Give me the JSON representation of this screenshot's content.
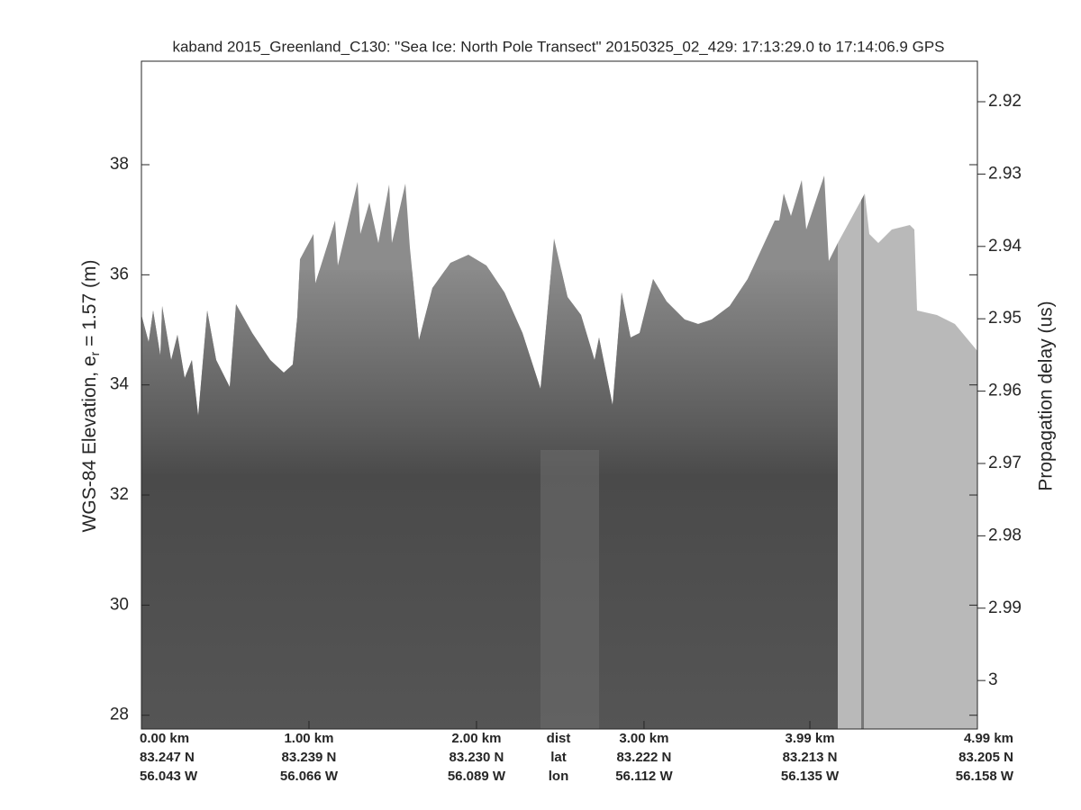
{
  "chart_data": {
    "type": "echogram",
    "title": "kaband 2015_Greenland_C130: \"Sea Ice: North Pole Transect\"  20150325_02_429: 17:13:29.0 to 17:14:06.9 GPS",
    "ylabel": [
      "WGS-84 Elevation, e",
      "r",
      " = 1.57 (m)"
    ],
    "y2label": "Propagation delay (us)",
    "ylim": [
      27.75,
      39.88
    ],
    "yticks": [
      28,
      30,
      32,
      34,
      36,
      38
    ],
    "y2lim": [
      3.0067,
      2.9144
    ],
    "y2ticks": [
      2.92,
      2.93,
      2.94,
      2.95,
      2.96,
      2.97,
      2.98,
      2.99,
      3
    ],
    "xlim": [
      0,
      4.99
    ],
    "xticks": [
      {
        "value": 0,
        "label": "0.00 km"
      },
      {
        "value": 1,
        "label": "1.00 km"
      },
      {
        "value": 2,
        "label": "2.00 km"
      },
      {
        "value": 3,
        "label": "3.00 km"
      },
      {
        "value": 3.99,
        "label": "3.99 km"
      },
      {
        "value": 4.99,
        "label": "4.99 km"
      }
    ],
    "xtick_lat": [
      "83.247 N",
      "83.239 N",
      "83.230 N",
      "83.222 N",
      "83.213 N",
      "83.205 N"
    ],
    "xtick_lon": [
      "56.043 W",
      "56.066 W",
      "56.089 W",
      "56.112 W",
      "56.135 W",
      "56.158 W"
    ],
    "row_labels": [
      "dist",
      "lat",
      "lon"
    ]
  }
}
